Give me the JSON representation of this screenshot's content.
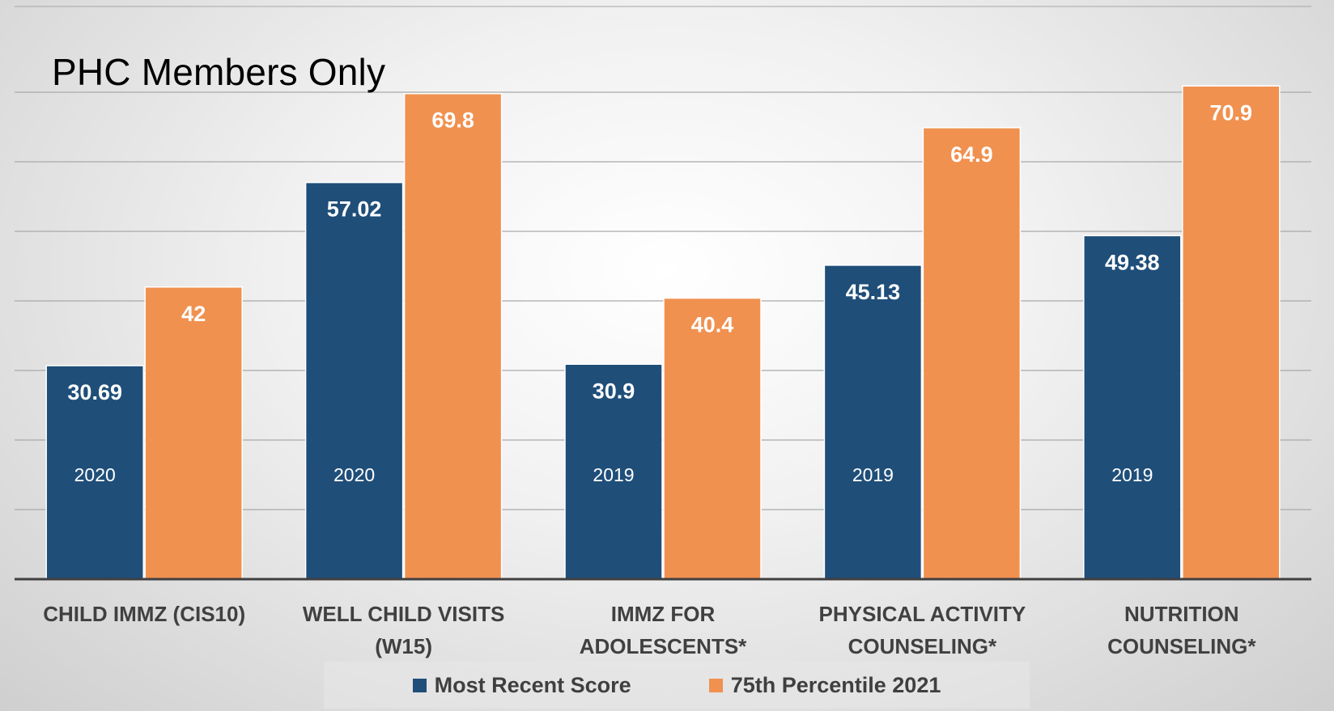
{
  "chart_data": {
    "type": "bar",
    "title": "PHC Members Only",
    "categories": [
      [
        "CHILD IMMZ (CIS10)"
      ],
      [
        "WELL CHILD VISITS",
        "(W15)"
      ],
      [
        "IMMZ FOR",
        "ADOLESCENTS*"
      ],
      [
        "PHYSICAL ACTIVITY",
        "COUNSELING*"
      ],
      [
        "NUTRITION",
        "COUNSELING*"
      ]
    ],
    "series": [
      {
        "name": "Most Recent Score",
        "color": "#1f4e79",
        "values": [
          30.69,
          57.02,
          30.9,
          45.13,
          49.38
        ],
        "labels": [
          "30.69",
          "57.02",
          "30.9",
          "45.13",
          "49.38"
        ],
        "year_labels": [
          "2020",
          "2020",
          "2019",
          "2019",
          "2019"
        ]
      },
      {
        "name": "75th Percentile 2021",
        "color": "#f09150",
        "values": [
          42,
          69.8,
          40.4,
          64.9,
          70.9
        ],
        "labels": [
          "42",
          "69.8",
          "40.4",
          "64.9",
          "70.9"
        ]
      }
    ],
    "ylim": [
      0,
      70
    ],
    "grid": true,
    "legend_position": "bottom",
    "xlabel": "",
    "ylabel": ""
  }
}
